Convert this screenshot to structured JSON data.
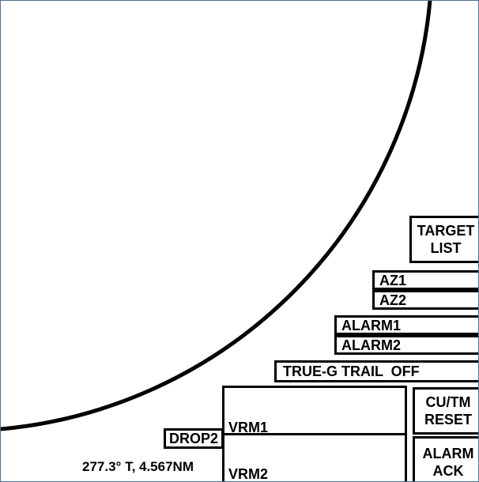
{
  "buttons": {
    "target_list": "TARGET LIST",
    "az1": "AZ1",
    "az2": "AZ2",
    "alarm1": "ALARM1",
    "alarm2": "ALARM2",
    "true_g_trail": "TRUE-G TRAIL  OFF",
    "drop2": "DROP2",
    "cu_tm_reset": "CU/TM RESET",
    "alarm_ack": "ALARM ACK"
  },
  "vrm": {
    "vrm1_label": "VRM1",
    "vrm2_label": "VRM2"
  },
  "cursor": {
    "readout": "277.3° T, 4.567NM"
  },
  "colors": {
    "background": "#ffffff",
    "foreground": "#000000",
    "frame": "#4f6f9a"
  }
}
